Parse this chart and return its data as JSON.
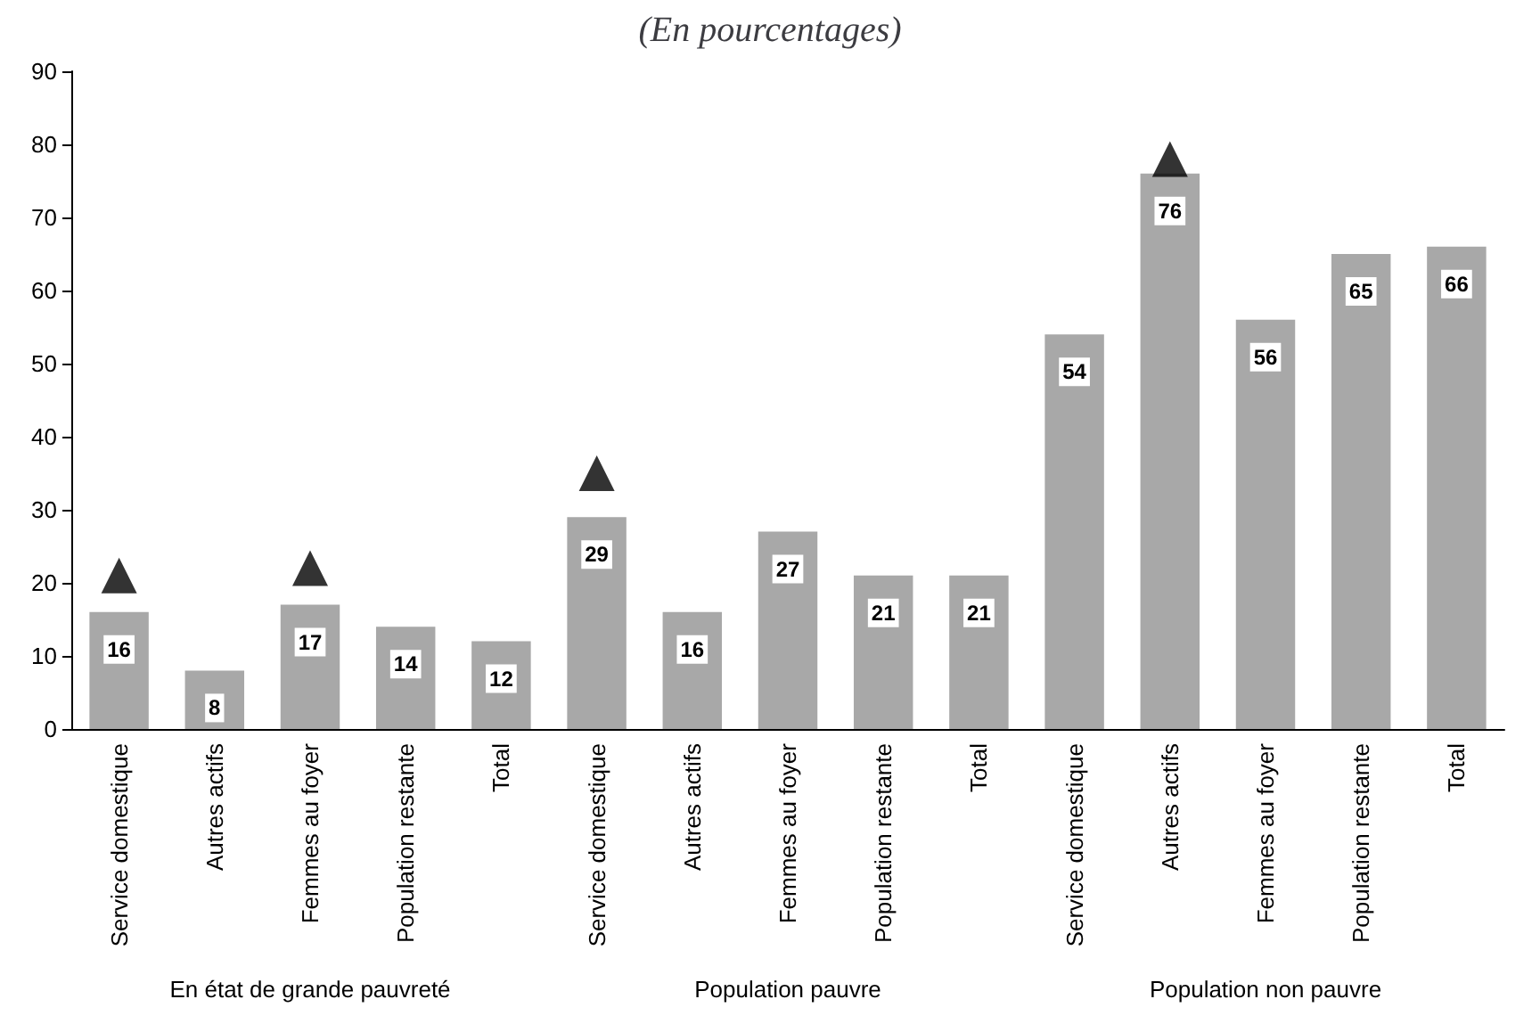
{
  "chart_data": {
    "type": "bar",
    "title": "(En pourcentages)",
    "categories": [
      "Service domestique",
      "Autres actifs",
      "Femmes au foyer",
      "Population restante",
      "Total",
      "Service domestique",
      "Autres actifs",
      "Femmes au foyer",
      "Population restante",
      "Total",
      "Service domestique",
      "Autres actifs",
      "Femmes au foyer",
      "Population restante",
      "Total"
    ],
    "series": [
      {
        "color": "#a8a8a8",
        "values": [
          16,
          8,
          17,
          14,
          12,
          29,
          16,
          27,
          21,
          21,
          54,
          76,
          56,
          65,
          66
        ],
        "data_labels": true
      },
      {
        "type": "scatter",
        "color": "#000000",
        "marker": "triangle",
        "values": [
          21,
          null,
          22,
          null,
          null,
          35,
          null,
          null,
          null,
          null,
          null,
          78,
          null,
          null,
          null
        ]
      }
    ],
    "annotations": [
      "En état de grande pauvreté",
      "Population pauvre",
      "Population non pauvre"
    ],
    "ylim": [
      0,
      90
    ],
    "yticks": [
      0,
      10,
      20,
      30,
      40,
      50,
      60,
      70,
      80,
      90
    ],
    "grid": false
  }
}
